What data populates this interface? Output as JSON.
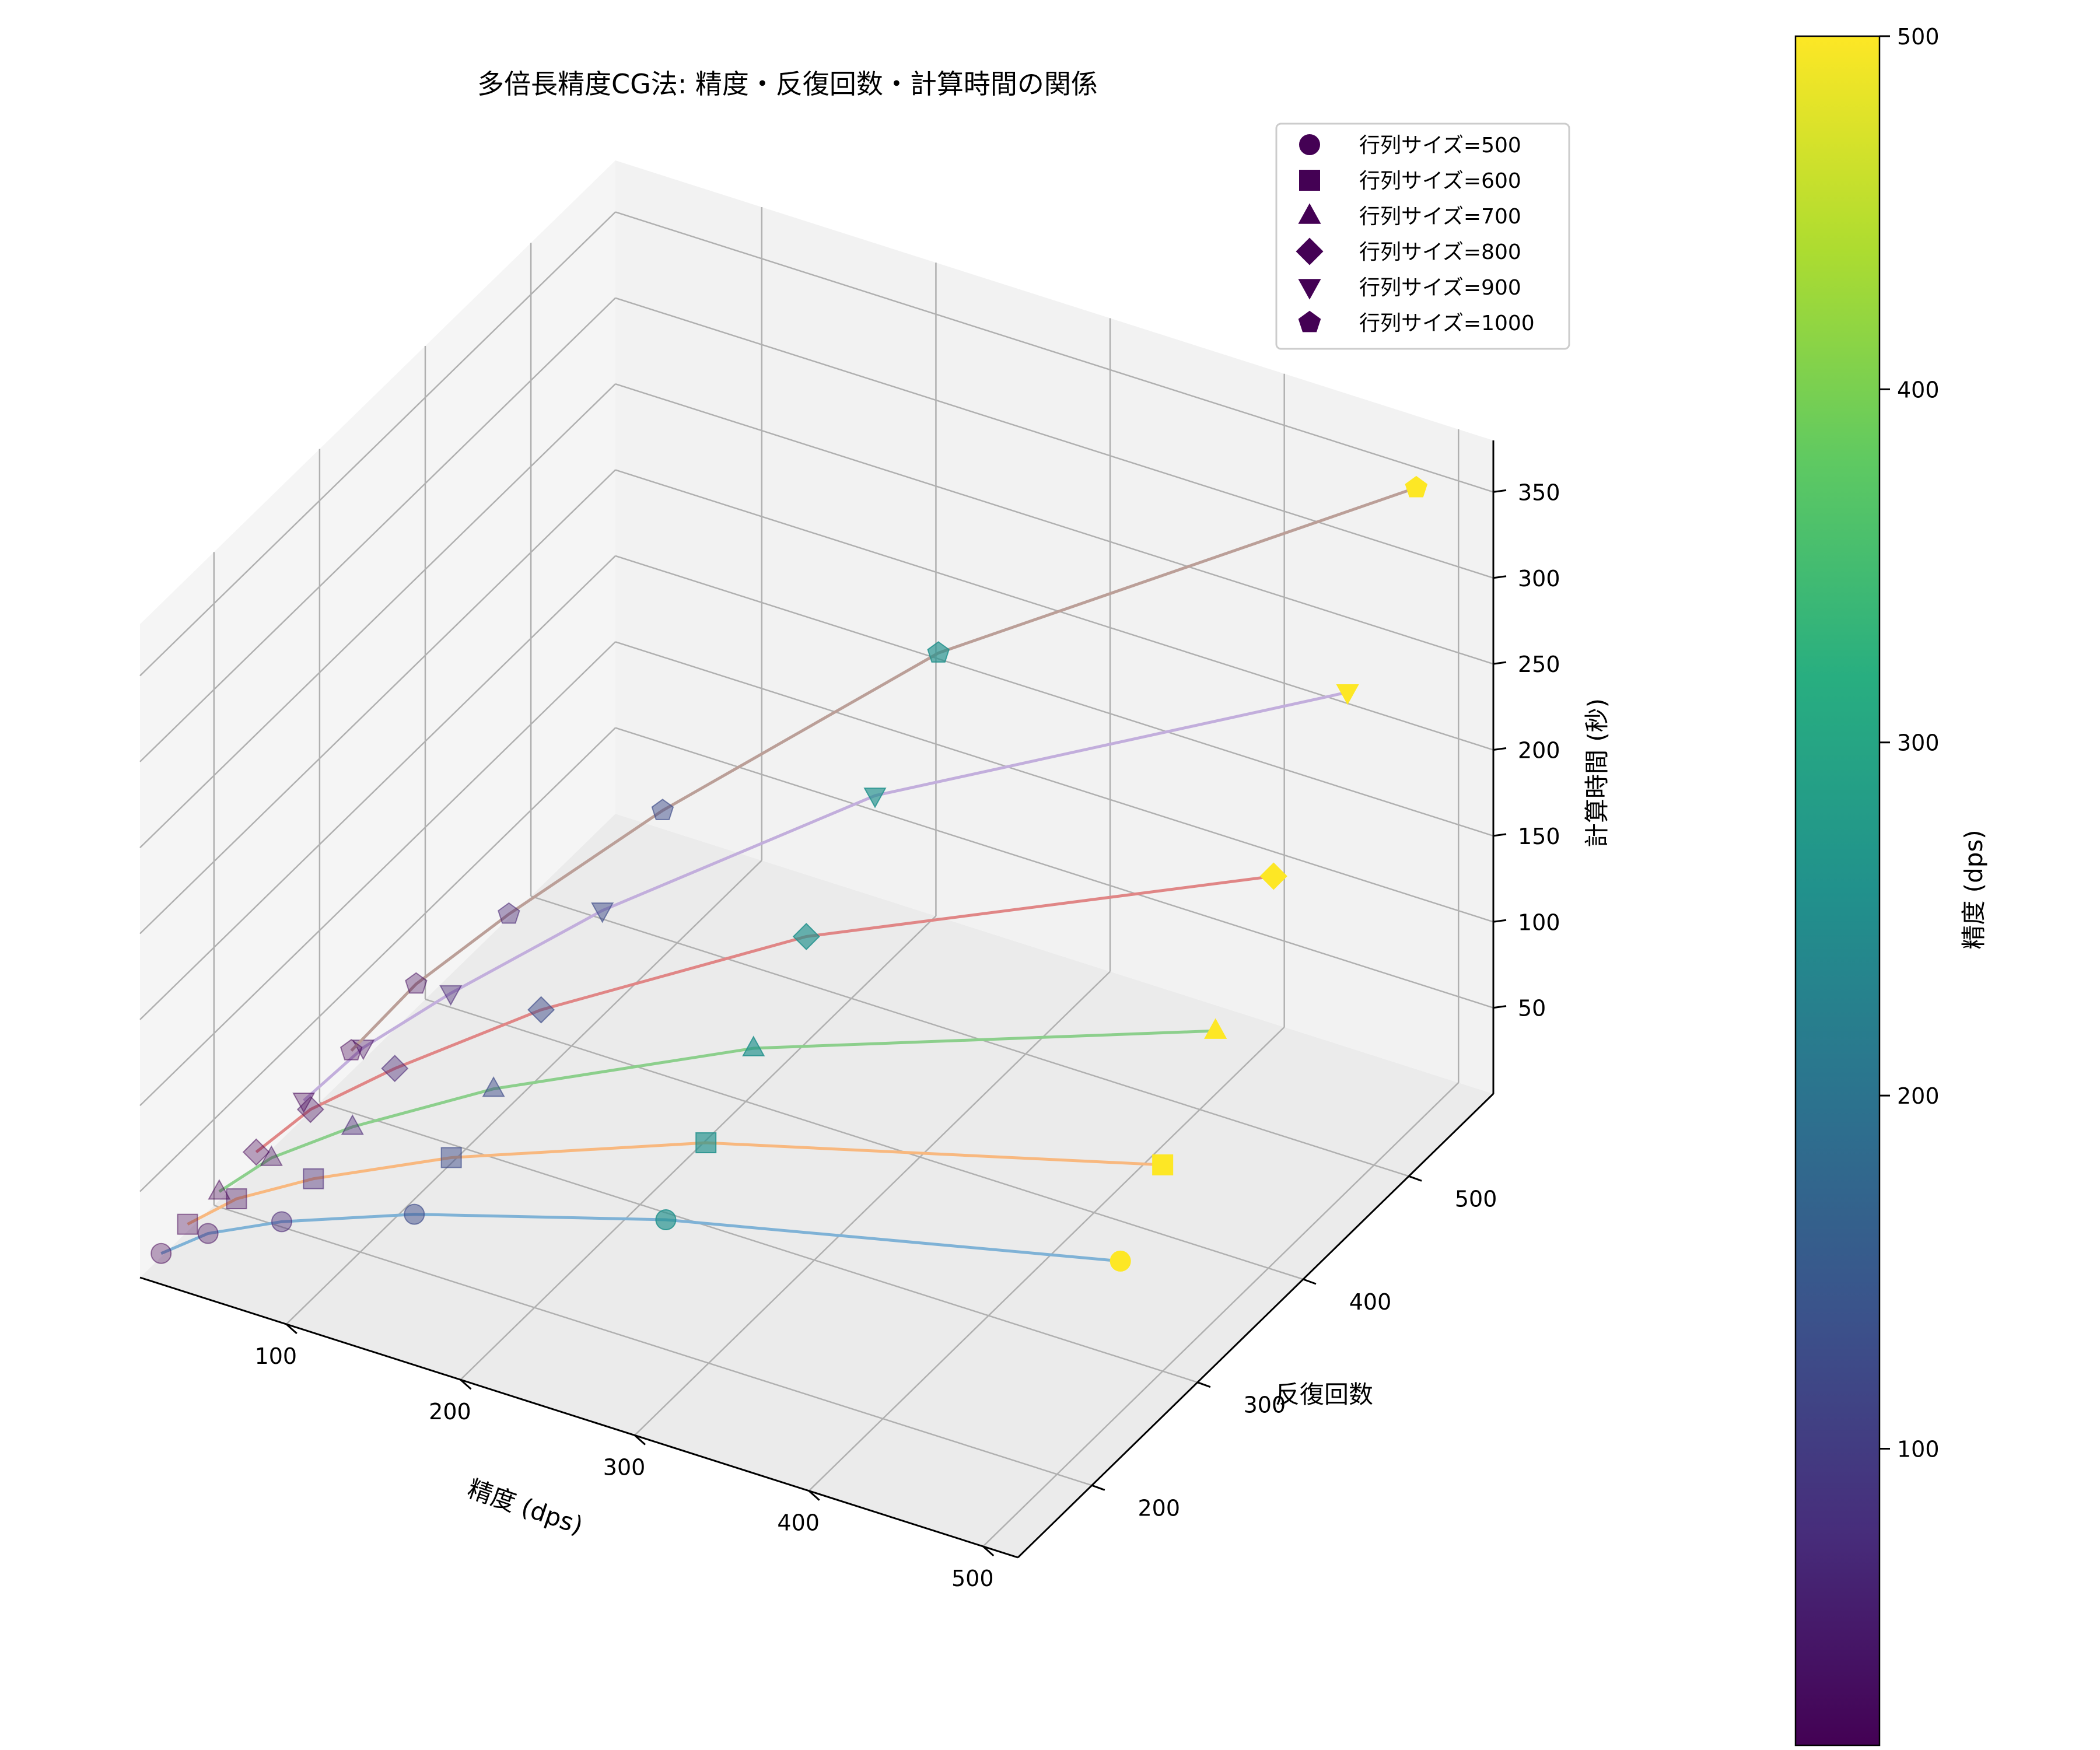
{
  "chart_data": {
    "type": "scatter3d",
    "title": "多倍長精度CG法: 精度・反復回数・計算時間の関係",
    "xlabel": "精度 (dps)",
    "ylabel": "反復回数",
    "zlabel": "計算時間 (秒)",
    "x_ticks": [
      "100",
      "200",
      "300",
      "400",
      "500"
    ],
    "y_ticks": [
      "200",
      "300",
      "400",
      "500"
    ],
    "z_ticks": [
      "50",
      "100",
      "150",
      "200",
      "250",
      "300",
      "350"
    ],
    "xlim": [
      16,
      520
    ],
    "ylim": [
      130,
      580
    ],
    "zlim": [
      0,
      380
    ],
    "colorbar": {
      "label": "精度 (dps)",
      "ticks": [
        "100",
        "200",
        "300",
        "400",
        "500"
      ],
      "range": [
        16,
        500
      ],
      "colormap": "viridis"
    },
    "legend": {
      "placement": "top-right"
    },
    "series": [
      {
        "name": "行列サイズ=500",
        "marker": "circle",
        "line_color": "#7fb2d6",
        "x": [
          16,
          32,
          64,
          128,
          256,
          500
        ],
        "y": [
          150,
          168,
          185,
          205,
          232,
          260
        ],
        "z": [
          2,
          8,
          15,
          28,
          50,
          88
        ]
      },
      {
        "name": "行列サイズ=600",
        "marker": "square",
        "line_color": "#f8b87f",
        "x": [
          16,
          32,
          64,
          128,
          256,
          500
        ],
        "y": [
          175,
          195,
          215,
          240,
          270,
          300
        ],
        "z": [
          4,
          12,
          22,
          40,
          72,
          120
        ]
      },
      {
        "name": "行列サイズ=700",
        "marker": "triangle-up",
        "line_color": "#8ccf8c",
        "x": [
          16,
          32,
          64,
          128,
          256,
          500
        ],
        "y": [
          205,
          228,
          252,
          280,
          315,
          350
        ],
        "z": [
          5,
          16,
          30,
          56,
          100,
          168
        ]
      },
      {
        "name": "行列サイズ=800",
        "marker": "diamond",
        "line_color": "#e08686",
        "x": [
          16,
          32,
          64,
          128,
          256,
          500
        ],
        "y": [
          240,
          265,
          292,
          325,
          365,
          405
        ],
        "z": [
          7,
          22,
          40,
          75,
          135,
          225
        ]
      },
      {
        "name": "行列サイズ=900",
        "marker": "triangle-down",
        "line_color": "#c2aedc",
        "x": [
          16,
          32,
          64,
          128,
          256,
          500
        ],
        "y": [
          285,
          315,
          345,
          383,
          430,
          475
        ],
        "z": [
          10,
          28,
          52,
          98,
          178,
          290
        ]
      },
      {
        "name": "行列サイズ=1000",
        "marker": "pentagon",
        "line_color": "#bb9f98",
        "x": [
          16,
          32,
          64,
          128,
          256,
          500
        ],
        "y": [
          330,
          365,
          400,
          440,
          490,
          540
        ],
        "z": [
          12,
          35,
          65,
          122,
          225,
          370
        ]
      }
    ]
  }
}
